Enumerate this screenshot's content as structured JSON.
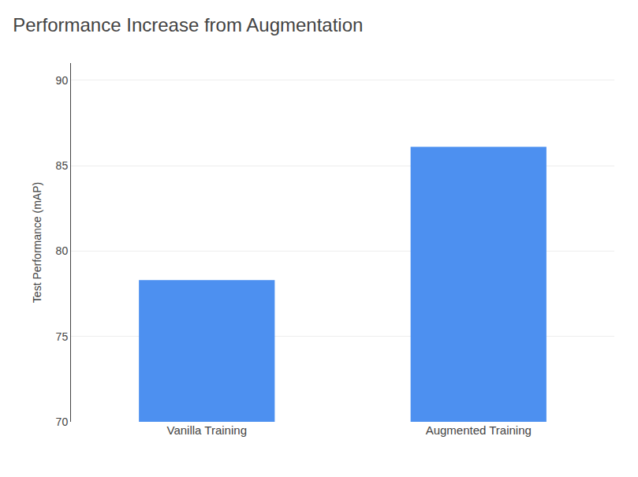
{
  "chart_data": {
    "type": "bar",
    "title": "Performance Increase from Augmentation",
    "ylabel": "Test Performance (mAP)",
    "categories": [
      "Vanilla Training",
      "Augmented Training"
    ],
    "values": [
      78.3,
      86.1
    ],
    "color": "#4d90f0",
    "ylim": [
      70,
      91
    ],
    "yticks": [
      70,
      75,
      80,
      85,
      90
    ],
    "grid": true
  }
}
